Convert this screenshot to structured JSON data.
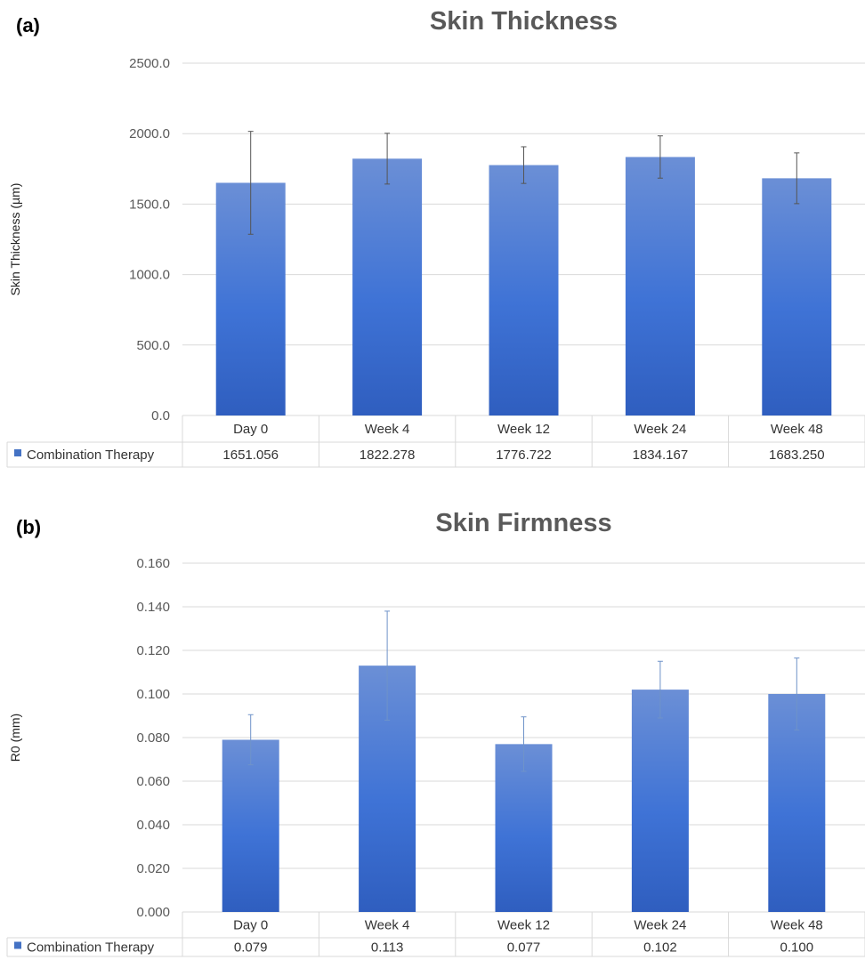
{
  "chart_data": [
    {
      "panel": "(a)",
      "type": "bar",
      "title": "Skin Thickness",
      "ylabel": "Skin Thickness (µm)",
      "xlabel": "",
      "ylim": [
        0,
        2500
      ],
      "yticks": [
        "0.0",
        "500.0",
        "1000.0",
        "1500.0",
        "2000.0",
        "2500.0"
      ],
      "grid": true,
      "categories": [
        "Day 0",
        "Week 4",
        "Week 12",
        "Week 24",
        "Week 48"
      ],
      "series": [
        {
          "name": "Combination Therapy",
          "values": [
            1651.056,
            1822.278,
            1776.722,
            1834.167,
            1683.25
          ],
          "labels": [
            "1651.056",
            "1822.278",
            "1776.722",
            "1834.167",
            "1683.250"
          ],
          "error": [
            365,
            180,
            130,
            150,
            180
          ]
        }
      ],
      "data_table": true,
      "color": "#4472C4"
    },
    {
      "panel": "(b)",
      "type": "bar",
      "title": "Skin Firmness",
      "ylabel": "R0 (mm)",
      "xlabel": "",
      "ylim": [
        0,
        0.16
      ],
      "yticks": [
        "0.000",
        "0.020",
        "0.040",
        "0.060",
        "0.080",
        "0.100",
        "0.120",
        "0.140",
        "0.160"
      ],
      "grid": true,
      "categories": [
        "Day 0",
        "Week 4",
        "Week 12",
        "Week 24",
        "Week 48"
      ],
      "series": [
        {
          "name": "Combination Therapy",
          "values": [
            0.079,
            0.113,
            0.077,
            0.102,
            0.1
          ],
          "labels": [
            "0.079",
            "0.113",
            "0.077",
            "0.102",
            "0.100"
          ],
          "error": [
            0.0115,
            0.025,
            0.0125,
            0.013,
            0.0165
          ]
        }
      ],
      "data_table": true,
      "color": "#4472C4"
    }
  ]
}
